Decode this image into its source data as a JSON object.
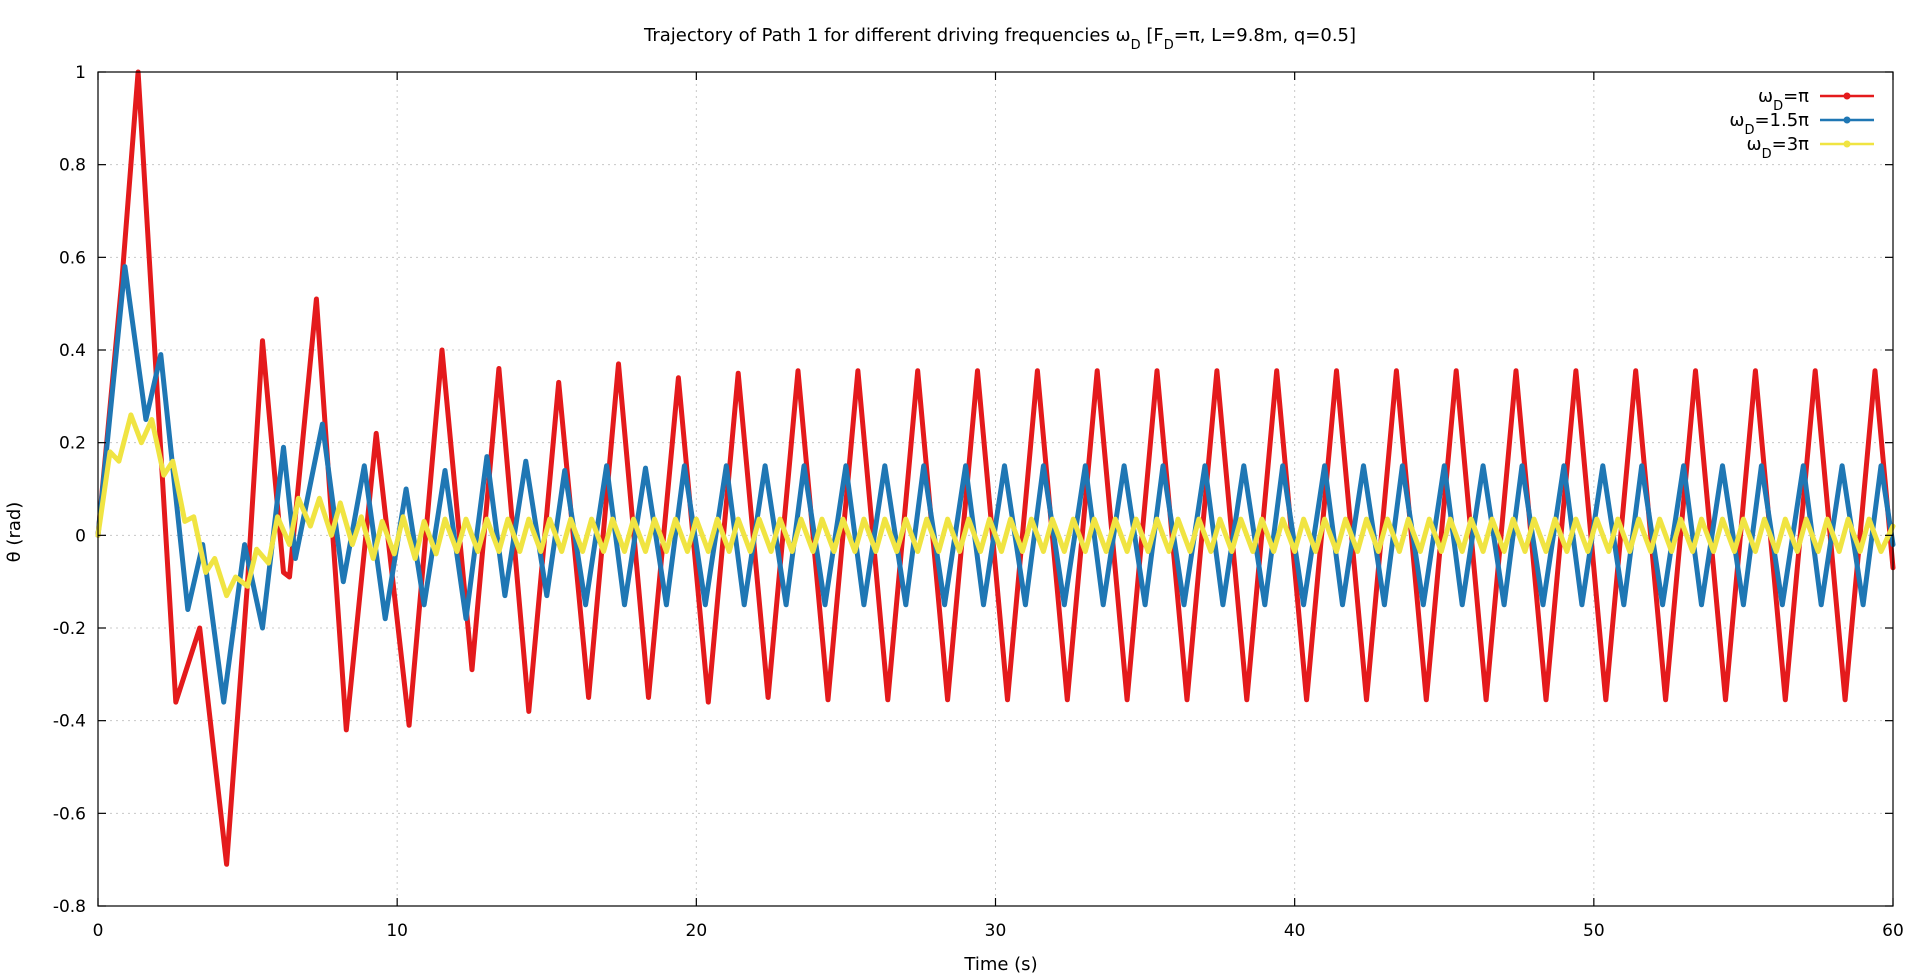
{
  "chart_data": {
    "type": "line",
    "title": "Trajectory of Path 1 for different driving frequencies ωD [FD=π, L=9.8m, q=0.5]",
    "title_parts": {
      "p1": "Trajectory of Path 1 for different driving frequencies ω",
      "sub1": "D",
      "p2": " [F",
      "sub2": "D",
      "p3": "=π, L=9.8m, q=0.5]"
    },
    "xlabel": "Time (s)",
    "ylabel": "θ (rad)",
    "xlim": [
      0,
      60
    ],
    "ylim": [
      -0.8,
      1
    ],
    "xticks": [
      0,
      10,
      20,
      30,
      40,
      50,
      60
    ],
    "xtick_labels": [
      "0",
      "10",
      "20",
      "30",
      "40",
      "50",
      "60"
    ],
    "yticks": [
      -0.8,
      -0.6,
      -0.4,
      -0.2,
      0,
      0.2,
      0.4,
      0.6,
      0.8,
      1
    ],
    "ytick_labels": [
      "-0.8",
      "-0.6",
      "-0.4",
      "-0.2",
      "0",
      "0.2",
      "0.4",
      "0.6",
      "0.8",
      "1"
    ],
    "grid": true,
    "legend_position": "top-right",
    "series": [
      {
        "legend": {
          "pre": "ω",
          "sub": "D",
          "post": "=π"
        },
        "color": "#e41a1c",
        "x": [
          0,
          0.8,
          1.34,
          2.6,
          3.4,
          4.3,
          5.0,
          5.5,
          6.2,
          6.4,
          7.3,
          8.3,
          9.3,
          10.4,
          11.5,
          12.5,
          13.4,
          14.4,
          15.4,
          16.4,
          17.4,
          18.4,
          19.4,
          20.4,
          21.4,
          22.4,
          23.4,
          24.4,
          25.4,
          26.4,
          27.4,
          28.4,
          29.4,
          30.4,
          31.4,
          32.4,
          33.4,
          34.4,
          35.4,
          36.4,
          37.4,
          38.4,
          39.4,
          40.4,
          41.4,
          42.4,
          43.4,
          44.4,
          45.4,
          46.4,
          47.4,
          48.4,
          49.4,
          50.4,
          51.4,
          52.4,
          53.4,
          54.4,
          55.4,
          56.4,
          57.4,
          58.4,
          59.4,
          60
        ],
        "y": [
          0,
          0.55,
          1.0,
          -0.36,
          -0.2,
          -0.71,
          -0.1,
          0.42,
          -0.08,
          -0.09,
          0.51,
          -0.42,
          0.22,
          -0.41,
          0.4,
          -0.29,
          0.36,
          -0.38,
          0.33,
          -0.35,
          0.37,
          -0.35,
          0.34,
          -0.36,
          0.35,
          -0.35,
          0.355,
          -0.355,
          0.355,
          -0.355,
          0.355,
          -0.355,
          0.355,
          -0.355,
          0.355,
          -0.355,
          0.355,
          -0.355,
          0.355,
          -0.355,
          0.355,
          -0.355,
          0.355,
          -0.355,
          0.355,
          -0.355,
          0.355,
          -0.355,
          0.355,
          -0.355,
          0.355,
          -0.355,
          0.355,
          -0.355,
          0.355,
          -0.355,
          0.355,
          -0.355,
          0.355,
          -0.355,
          0.355,
          -0.355,
          0.355,
          -0.07
        ]
      },
      {
        "legend": {
          "pre": "ω",
          "sub": "D",
          "post": "=1.5π"
        },
        "color": "#1f77b4",
        "x": [
          0,
          0.9,
          1.6,
          2.1,
          3.0,
          3.5,
          4.2,
          4.9,
          5.5,
          6.2,
          6.6,
          7.5,
          8.2,
          8.9,
          9.6,
          10.3,
          10.9,
          11.6,
          12.3,
          13.0,
          13.6,
          14.3,
          15.0,
          15.6,
          16.3,
          17.0,
          17.6,
          18.3,
          19.0,
          19.6,
          20.3,
          21.0,
          21.6,
          22.3,
          23.0,
          23.6,
          24.3,
          25.0,
          25.6,
          26.3,
          27.0,
          27.6,
          28.3,
          29.0,
          29.6,
          30.3,
          31.0,
          31.6,
          32.3,
          33.0,
          33.6,
          34.3,
          35.0,
          35.6,
          36.3,
          37.0,
          37.6,
          38.3,
          39.0,
          39.6,
          40.3,
          41.0,
          41.6,
          42.3,
          43.0,
          43.6,
          44.3,
          45.0,
          45.6,
          46.3,
          47.0,
          47.6,
          48.3,
          49.0,
          49.6,
          50.3,
          51.0,
          51.6,
          52.3,
          53.0,
          53.6,
          54.3,
          55.0,
          55.6,
          56.3,
          57.0,
          57.6,
          58.3,
          59.0,
          59.6,
          60
        ],
        "y": [
          0,
          0.58,
          0.25,
          0.39,
          -0.16,
          -0.02,
          -0.36,
          -0.02,
          -0.2,
          0.19,
          -0.05,
          0.24,
          -0.1,
          0.15,
          -0.18,
          0.1,
          -0.15,
          0.14,
          -0.18,
          0.17,
          -0.13,
          0.16,
          -0.13,
          0.14,
          -0.15,
          0.15,
          -0.15,
          0.145,
          -0.15,
          0.15,
          -0.15,
          0.15,
          -0.15,
          0.15,
          -0.15,
          0.15,
          -0.15,
          0.15,
          -0.15,
          0.15,
          -0.15,
          0.15,
          -0.15,
          0.15,
          -0.15,
          0.15,
          -0.15,
          0.15,
          -0.15,
          0.15,
          -0.15,
          0.15,
          -0.15,
          0.15,
          -0.15,
          0.15,
          -0.15,
          0.15,
          -0.15,
          0.15,
          -0.15,
          0.15,
          -0.15,
          0.15,
          -0.15,
          0.15,
          -0.15,
          0.15,
          -0.15,
          0.15,
          -0.15,
          0.15,
          -0.15,
          0.15,
          -0.15,
          0.15,
          -0.15,
          0.15,
          -0.15,
          0.15,
          -0.15,
          0.15,
          -0.15,
          0.15,
          -0.15,
          0.15,
          -0.15,
          0.15,
          -0.15,
          0.15,
          -0.02
        ]
      },
      {
        "legend": {
          "pre": "ω",
          "sub": "D",
          "post": "=3π"
        },
        "color": "#f0e442",
        "x": [
          0,
          0.4,
          0.7,
          1.1,
          1.45,
          1.8,
          2.2,
          2.5,
          2.9,
          3.2,
          3.6,
          3.9,
          4.3,
          4.6,
          5.0,
          5.3,
          5.7,
          6.0,
          6.4,
          6.7,
          7.1,
          7.4,
          7.8,
          8.1,
          8.5,
          8.8,
          9.2,
          9.5,
          9.9,
          10.2,
          10.6,
          10.9,
          11.3,
          11.6,
          12.0,
          12.3,
          12.7,
          13.0,
          13.4,
          13.7,
          14.1,
          14.4,
          14.8,
          15.1,
          15.5,
          15.8,
          16.2,
          16.5,
          16.9,
          17.2,
          17.6,
          17.9,
          18.3,
          18.6,
          19.0,
          19.3,
          19.7,
          20.0,
          20.4,
          20.7,
          21.1,
          21.4,
          21.8,
          22.1,
          22.5,
          22.8,
          23.2,
          23.5,
          23.9,
          24.2,
          24.6,
          24.9,
          25.3,
          25.6,
          26.0,
          26.3,
          26.7,
          27.0,
          27.4,
          27.7,
          28.1,
          28.4,
          28.8,
          29.1,
          29.5,
          29.8,
          30.2,
          30.5,
          30.9,
          31.2,
          31.6,
          31.9,
          32.3,
          32.6,
          33.0,
          33.3,
          33.7,
          34.0,
          34.4,
          34.7,
          35.1,
          35.4,
          35.8,
          36.1,
          36.5,
          36.8,
          37.2,
          37.5,
          37.9,
          38.2,
          38.6,
          38.9,
          39.3,
          39.6,
          40.0,
          40.3,
          40.7,
          41.0,
          41.4,
          41.7,
          42.1,
          42.4,
          42.8,
          43.1,
          43.5,
          43.8,
          44.2,
          44.5,
          44.9,
          45.2,
          45.6,
          45.9,
          46.3,
          46.6,
          47.0,
          47.3,
          47.7,
          48.0,
          48.4,
          48.7,
          49.1,
          49.4,
          49.8,
          50.1,
          50.5,
          50.8,
          51.2,
          51.5,
          51.9,
          52.2,
          52.6,
          52.9,
          53.3,
          53.6,
          54.0,
          54.3,
          54.7,
          55.0,
          55.4,
          55.7,
          56.1,
          56.4,
          56.8,
          57.1,
          57.5,
          57.8,
          58.2,
          58.5,
          58.9,
          59.2,
          59.6,
          60
        ],
        "y": [
          0,
          0.18,
          0.16,
          0.26,
          0.2,
          0.25,
          0.13,
          0.16,
          0.03,
          0.04,
          -0.08,
          -0.05,
          -0.13,
          -0.09,
          -0.11,
          -0.03,
          -0.06,
          0.04,
          -0.02,
          0.08,
          0.02,
          0.08,
          0.0,
          0.07,
          -0.02,
          0.04,
          -0.05,
          0.03,
          -0.04,
          0.04,
          -0.05,
          0.03,
          -0.04,
          0.035,
          -0.035,
          0.035,
          -0.035,
          0.035,
          -0.035,
          0.035,
          -0.035,
          0.035,
          -0.035,
          0.035,
          -0.035,
          0.035,
          -0.035,
          0.035,
          -0.035,
          0.035,
          -0.035,
          0.035,
          -0.035,
          0.035,
          -0.035,
          0.035,
          -0.035,
          0.035,
          -0.035,
          0.035,
          -0.035,
          0.035,
          -0.035,
          0.035,
          -0.035,
          0.035,
          -0.035,
          0.035,
          -0.035,
          0.035,
          -0.035,
          0.035,
          -0.035,
          0.035,
          -0.035,
          0.035,
          -0.035,
          0.035,
          -0.035,
          0.035,
          -0.035,
          0.035,
          -0.035,
          0.035,
          -0.035,
          0.035,
          -0.035,
          0.035,
          -0.035,
          0.035,
          -0.035,
          0.035,
          -0.035,
          0.035,
          -0.035,
          0.035,
          -0.035,
          0.035,
          -0.035,
          0.035,
          -0.035,
          0.035,
          -0.035,
          0.035,
          -0.035,
          0.035,
          -0.035,
          0.035,
          -0.035,
          0.035,
          -0.035,
          0.035,
          -0.035,
          0.035,
          -0.035,
          0.035,
          -0.035,
          0.035,
          -0.035,
          0.035,
          -0.035,
          0.035,
          -0.035,
          0.035,
          -0.035,
          0.035,
          -0.035,
          0.035,
          -0.035,
          0.035,
          -0.035,
          0.035,
          -0.035,
          0.035,
          -0.035,
          0.035,
          -0.035,
          0.035,
          -0.035,
          0.035,
          -0.035,
          0.035,
          -0.035,
          0.035,
          -0.035,
          0.035,
          -0.035,
          0.035,
          -0.035,
          0.035,
          -0.035,
          0.035,
          -0.035,
          0.035,
          -0.035,
          0.035,
          -0.035,
          0.035,
          -0.035,
          0.035,
          -0.035,
          0.035,
          -0.035,
          0.035,
          -0.035,
          0.035,
          -0.035,
          0.035,
          -0.035,
          0.035,
          -0.035,
          0.02
        ]
      }
    ]
  }
}
